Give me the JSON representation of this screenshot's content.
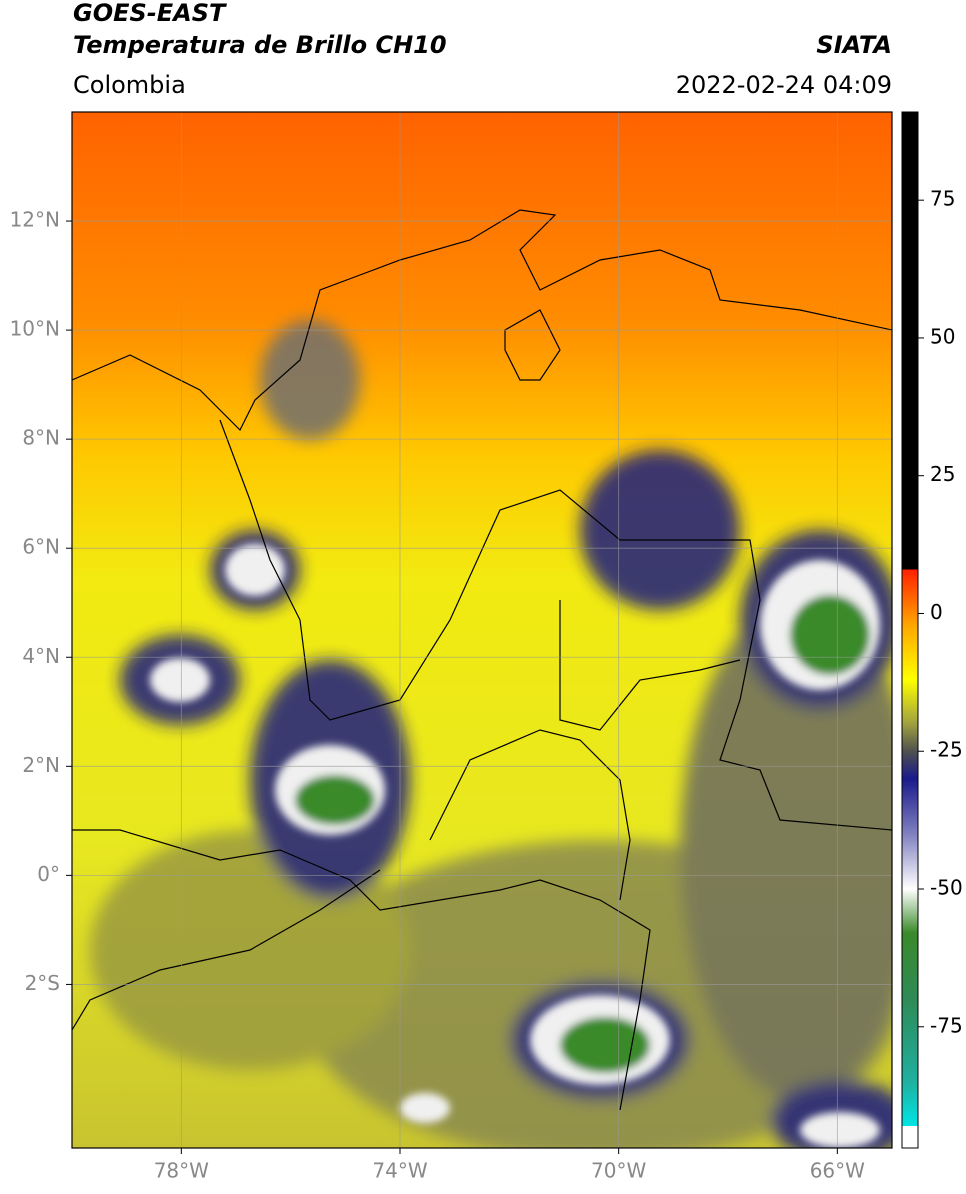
{
  "header": {
    "title": "GOES-EAST",
    "subtitle": "Temperatura de Brillo CH10",
    "source": "SIATA",
    "region": "Colombia",
    "datetime": "2022-02-24 04:09"
  },
  "map": {
    "xlim": [
      -80,
      -65
    ],
    "ylim": [
      -5,
      14
    ],
    "xticks": [
      {
        "value": -78,
        "label": "78°W"
      },
      {
        "value": -74,
        "label": "74°W"
      },
      {
        "value": -70,
        "label": "70°W"
      },
      {
        "value": -66,
        "label": "66°W"
      }
    ],
    "yticks": [
      {
        "value": 12,
        "label": "12°N"
      },
      {
        "value": 10,
        "label": "10°N"
      },
      {
        "value": 8,
        "label": "8°N"
      },
      {
        "value": 6,
        "label": "6°N"
      },
      {
        "value": 4,
        "label": "4°N"
      },
      {
        "value": 2,
        "label": "2°N"
      },
      {
        "value": 0,
        "label": "0°"
      },
      {
        "value": -2,
        "label": "2°S"
      }
    ],
    "grid": true
  },
  "colorbar": {
    "lim": [
      -97,
      91
    ],
    "ticks": [
      75,
      50,
      25,
      0,
      -25,
      -50,
      -75
    ],
    "stops": [
      {
        "value": -97,
        "color": "#ffffff"
      },
      {
        "value": -93,
        "color": "#ffffff"
      },
      {
        "value": -93,
        "color": "#00e5e5"
      },
      {
        "value": -85,
        "color": "#20b0a0"
      },
      {
        "value": -70,
        "color": "#2e8b57"
      },
      {
        "value": -58,
        "color": "#3a8a2a"
      },
      {
        "value": -50,
        "color": "#ffffff"
      },
      {
        "value": -40,
        "color": "#8080c0"
      },
      {
        "value": -30,
        "color": "#1a1a8c"
      },
      {
        "value": -25,
        "color": "#505050"
      },
      {
        "value": -20,
        "color": "#a0a040"
      },
      {
        "value": -12,
        "color": "#ffff00"
      },
      {
        "value": -2,
        "color": "#ffa500"
      },
      {
        "value": 8,
        "color": "#ff2000"
      },
      {
        "value": 8,
        "color": "#000000"
      },
      {
        "value": 91,
        "color": "#000000"
      }
    ]
  }
}
